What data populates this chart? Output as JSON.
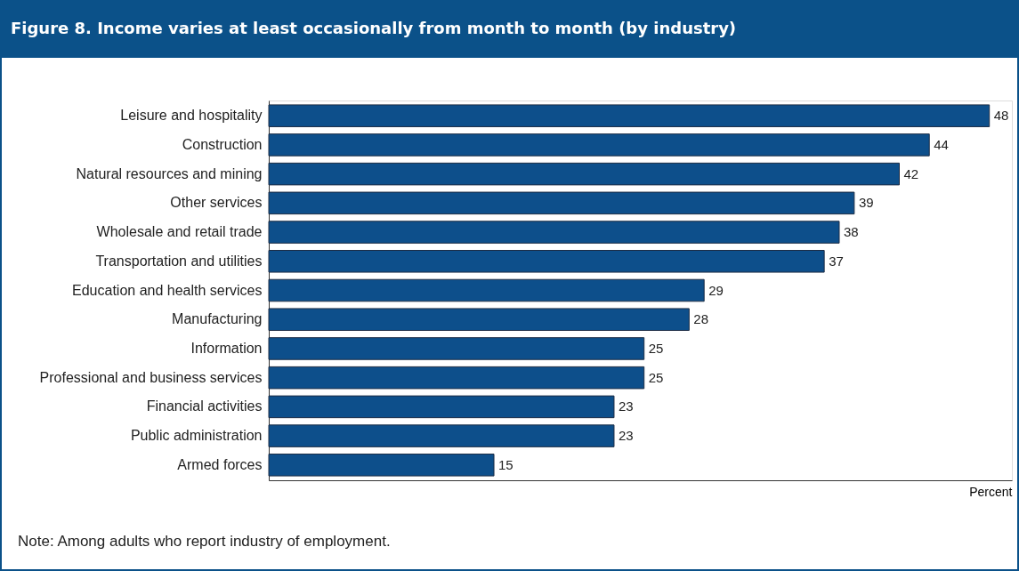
{
  "chart_data": {
    "type": "bar",
    "orientation": "horizontal",
    "title": "Figure 8. Income varies at least occasionally from month to month (by industry)",
    "xlabel": "Percent",
    "categories": [
      "Leisure and hospitality",
      "Construction",
      "Natural resources and mining",
      "Other services",
      "Wholesale and retail trade",
      "Transportation and utilities",
      "Education and health services",
      "Manufacturing",
      "Information",
      "Professional and business services",
      "Financial activities",
      "Public administration",
      "Armed forces"
    ],
    "values": [
      48,
      44,
      42,
      39,
      38,
      37,
      29,
      28,
      25,
      25,
      23,
      23,
      15
    ],
    "color": "#0d4f8b",
    "xlim": [
      0,
      49.5
    ],
    "data_labels": true,
    "annotations": [
      "Note: Among adults who report industry of employment."
    ]
  }
}
